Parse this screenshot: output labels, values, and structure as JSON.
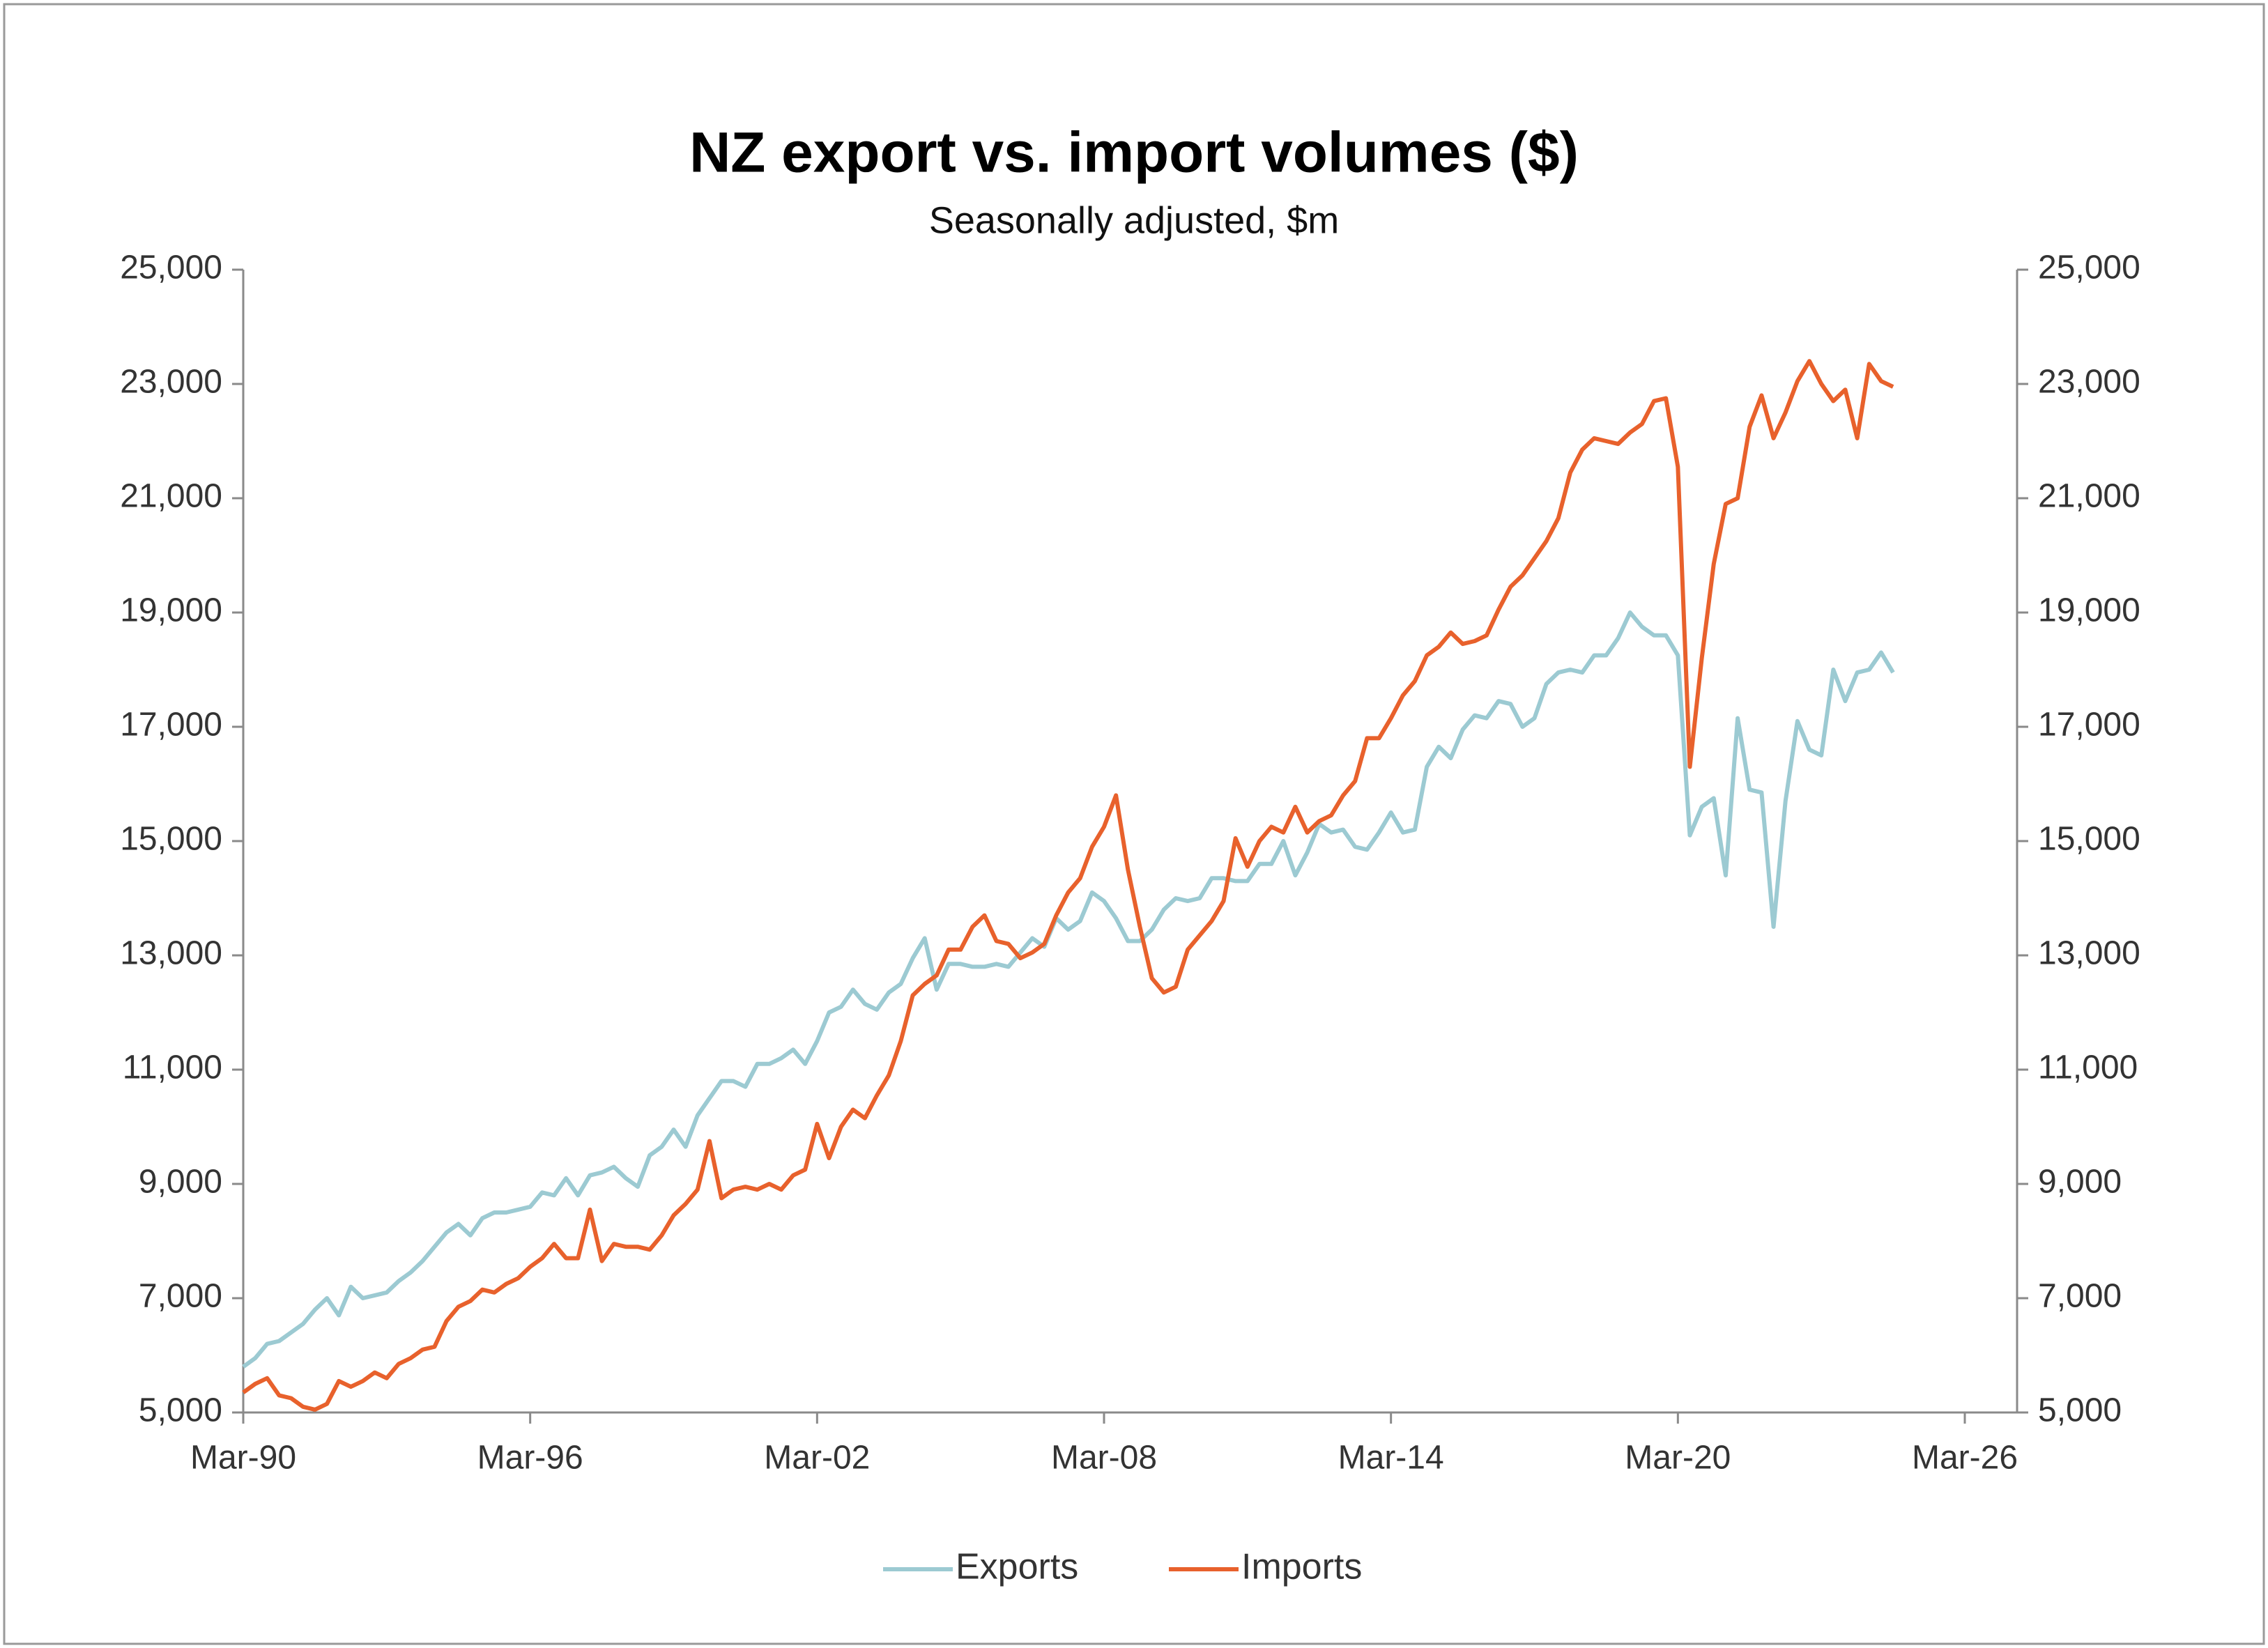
{
  "chart_data": {
    "type": "line",
    "title": "NZ export vs. import volumes ($)",
    "subtitle": "Seasonally adjusted, $m",
    "categories": [
      "Mar-90",
      null,
      null,
      null,
      null,
      null,
      null,
      null,
      null,
      null,
      null,
      null,
      null,
      null,
      null,
      null,
      null,
      null,
      null,
      null,
      null,
      null,
      null,
      null,
      "Mar-96",
      null,
      null,
      null,
      null,
      null,
      null,
      null,
      null,
      null,
      null,
      null,
      null,
      null,
      null,
      null,
      null,
      null,
      null,
      null,
      null,
      null,
      null,
      null,
      "Mar-02",
      null,
      null,
      null,
      null,
      null,
      null,
      null,
      null,
      null,
      null,
      null,
      null,
      null,
      null,
      null,
      null,
      null,
      null,
      null,
      null,
      null,
      null,
      null,
      "Mar-08",
      null,
      null,
      null,
      null,
      null,
      null,
      null,
      null,
      null,
      null,
      null,
      null,
      null,
      null,
      null,
      null,
      null,
      null,
      null,
      null,
      null,
      null,
      null,
      "Mar-14",
      null,
      null,
      null,
      null,
      null,
      null,
      null,
      null,
      null,
      null,
      null,
      null,
      null,
      null,
      null,
      null,
      null,
      null,
      null,
      null,
      null,
      null,
      null,
      "Mar-20",
      null,
      null,
      null,
      null,
      null,
      null,
      null,
      null,
      null,
      null,
      null,
      null,
      null,
      null,
      null,
      null,
      null,
      null,
      null,
      null,
      null,
      null,
      null,
      "Mar-26"
    ],
    "series": [
      {
        "name": "Exports",
        "color": "#9ccad2",
        "values": [
          5800,
          5950,
          6200,
          6250,
          6400,
          6550,
          6800,
          7000,
          6700,
          7200,
          7000,
          7050,
          7100,
          7300,
          7450,
          7650,
          7900,
          8150,
          8300,
          8100,
          8400,
          8500,
          8500,
          8550,
          8600,
          8850,
          8800,
          9100,
          8800,
          9150,
          9200,
          9300,
          9100,
          8950,
          9500,
          9650,
          9950,
          9650,
          10200,
          10500,
          10800,
          10800,
          10700,
          11100,
          11100,
          11200,
          11350,
          11100,
          11500,
          12000,
          12100,
          12400,
          12150,
          12050,
          12350,
          12500,
          12950,
          13300,
          12400,
          12850,
          12850,
          12800,
          12800,
          12850,
          12800,
          13050,
          13300,
          13150,
          13650,
          13450,
          13600,
          14100,
          13950,
          13650,
          13250,
          13250,
          13450,
          13800,
          14000,
          13950,
          14000,
          14350,
          14350,
          14300,
          14300,
          14600,
          14600,
          15000,
          14400,
          14800,
          15300,
          15150,
          15200,
          14900,
          14850,
          15150,
          15500,
          15150,
          15200,
          16300,
          16650,
          16450,
          16950,
          17200,
          17150,
          17450,
          17400,
          17000,
          17150,
          17750,
          17950,
          18000,
          17950,
          18250,
          18250,
          18550,
          19000,
          18750,
          18600,
          18600,
          18250,
          15100,
          15600,
          15750,
          14400,
          17150,
          15900,
          15850,
          13500,
          15700,
          17100,
          16600,
          16500,
          18000,
          17450,
          17950,
          18000,
          18300,
          17950,
          null,
          null,
          null,
          null,
          null,
          null
        ]
      },
      {
        "name": "Imports",
        "color": "#e8612c",
        "values": [
          5350,
          5500,
          5600,
          5300,
          5250,
          5100,
          5050,
          5150,
          5550,
          5450,
          5550,
          5700,
          5600,
          5850,
          5950,
          6100,
          6150,
          6600,
          6850,
          6950,
          7150,
          7100,
          7250,
          7350,
          7550,
          7700,
          7950,
          7700,
          7700,
          8550,
          7650,
          7950,
          7900,
          7900,
          7850,
          8100,
          8450,
          8650,
          8900,
          9750,
          8750,
          8900,
          8950,
          8900,
          9000,
          8900,
          9150,
          9250,
          10050,
          9450,
          10000,
          10300,
          10150,
          10550,
          10900,
          11500,
          12300,
          12500,
          12650,
          13100,
          13100,
          13500,
          13700,
          13250,
          13200,
          12950,
          13050,
          13200,
          13700,
          14100,
          14350,
          14900,
          15250,
          15800,
          14500,
          13500,
          12600,
          12350,
          12450,
          13100,
          13350,
          13600,
          13950,
          15050,
          14550,
          15000,
          15250,
          15150,
          15600,
          15150,
          15350,
          15450,
          15800,
          16050,
          16800,
          16800,
          17150,
          17550,
          17800,
          18250,
          18400,
          18650,
          18450,
          18500,
          18600,
          19050,
          19450,
          19650,
          19950,
          20250,
          20650,
          21450,
          21850,
          22050,
          22000,
          21950,
          22150,
          22300,
          22700,
          22750,
          21550,
          16300,
          18200,
          19850,
          20900,
          21000,
          22250,
          22800,
          22050,
          22500,
          23050,
          23400,
          23000,
          22700,
          22900,
          22050,
          23350,
          23050,
          22950,
          null,
          null,
          null,
          null,
          null,
          null
        ]
      }
    ],
    "ylim": [
      5000,
      25000
    ],
    "yticks": [
      {
        "value": 5000,
        "label": "5,000"
      },
      {
        "value": 7000,
        "label": "7,000"
      },
      {
        "value": 9000,
        "label": "9,000"
      },
      {
        "value": 11000,
        "label": "11,000"
      },
      {
        "value": 13000,
        "label": "13,000"
      },
      {
        "value": 15000,
        "label": "15,000"
      },
      {
        "value": 17000,
        "label": "17,000"
      },
      {
        "value": 19000,
        "label": "19,000"
      },
      {
        "value": 21000,
        "label": "21,000"
      },
      {
        "value": 23000,
        "label": "23,000"
      },
      {
        "value": 25000,
        "label": "25,000"
      }
    ],
    "y2lim": [
      5000,
      25000
    ],
    "y2ticks": [
      {
        "value": 5000,
        "label": "5,000"
      },
      {
        "value": 7000,
        "label": "7,000"
      },
      {
        "value": 9000,
        "label": "9,000"
      },
      {
        "value": 11000,
        "label": "11,000"
      },
      {
        "value": 13000,
        "label": "13,000"
      },
      {
        "value": 15000,
        "label": "15,000"
      },
      {
        "value": 17000,
        "label": "17,000"
      },
      {
        "value": 19000,
        "label": "19,000"
      },
      {
        "value": 21000,
        "label": "21,000"
      },
      {
        "value": 23000,
        "label": "23,000"
      },
      {
        "value": 25000,
        "label": "25,000"
      }
    ],
    "grid": false,
    "legend": "bottom"
  }
}
